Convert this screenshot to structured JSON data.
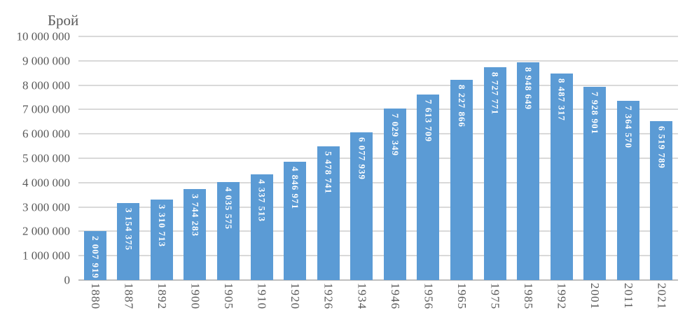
{
  "chart_data": {
    "type": "bar",
    "title": "Брой",
    "ylabel": "Брой",
    "xlabel": "",
    "categories": [
      "1880",
      "1887",
      "1892",
      "1900",
      "1905",
      "1910",
      "1920",
      "1926",
      "1934",
      "1946",
      "1956",
      "1965",
      "1975",
      "1985",
      "1992",
      "2001",
      "2011",
      "2021"
    ],
    "values": [
      2007919,
      3154375,
      3310713,
      3744283,
      4035575,
      4337513,
      4846971,
      5478741,
      6077939,
      7029349,
      7613709,
      8227866,
      8727771,
      8948649,
      8487317,
      7928901,
      7364570,
      6519789
    ],
    "bar_labels": [
      "2 007 919",
      "3 154 375",
      "3 310 713",
      "3 744 283",
      "4 035 575",
      "4 337 513",
      "4 846 971",
      "5 478 741",
      "6 077 939",
      "7 029 349",
      "7 613 709",
      "8 227 866",
      "8 727 771",
      "8 948 649",
      "8 487 317",
      "7 928 901",
      "7 364 570",
      "6 519 789"
    ],
    "ylim": [
      0,
      10000000
    ],
    "ytick_step": 1000000,
    "ytick_labels": [
      "0",
      "1 000 000",
      "2 000 000",
      "3 000 000",
      "4 000 000",
      "5 000 000",
      "6 000 000",
      "7 000 000",
      "8 000 000",
      "9 000 000",
      "10 000 000"
    ],
    "grid": true,
    "legend_position": "none",
    "bar_label_position": "inside-end-vertical",
    "x_label_rotation": "vertical",
    "colors": {
      "bar": "#5B9BD5",
      "bar_label": "#FFFFFF",
      "axis_text": "#595959",
      "gridline": "#D9D9D9",
      "axis_line": "#BFBFBF",
      "background": "#FFFFFF"
    }
  }
}
